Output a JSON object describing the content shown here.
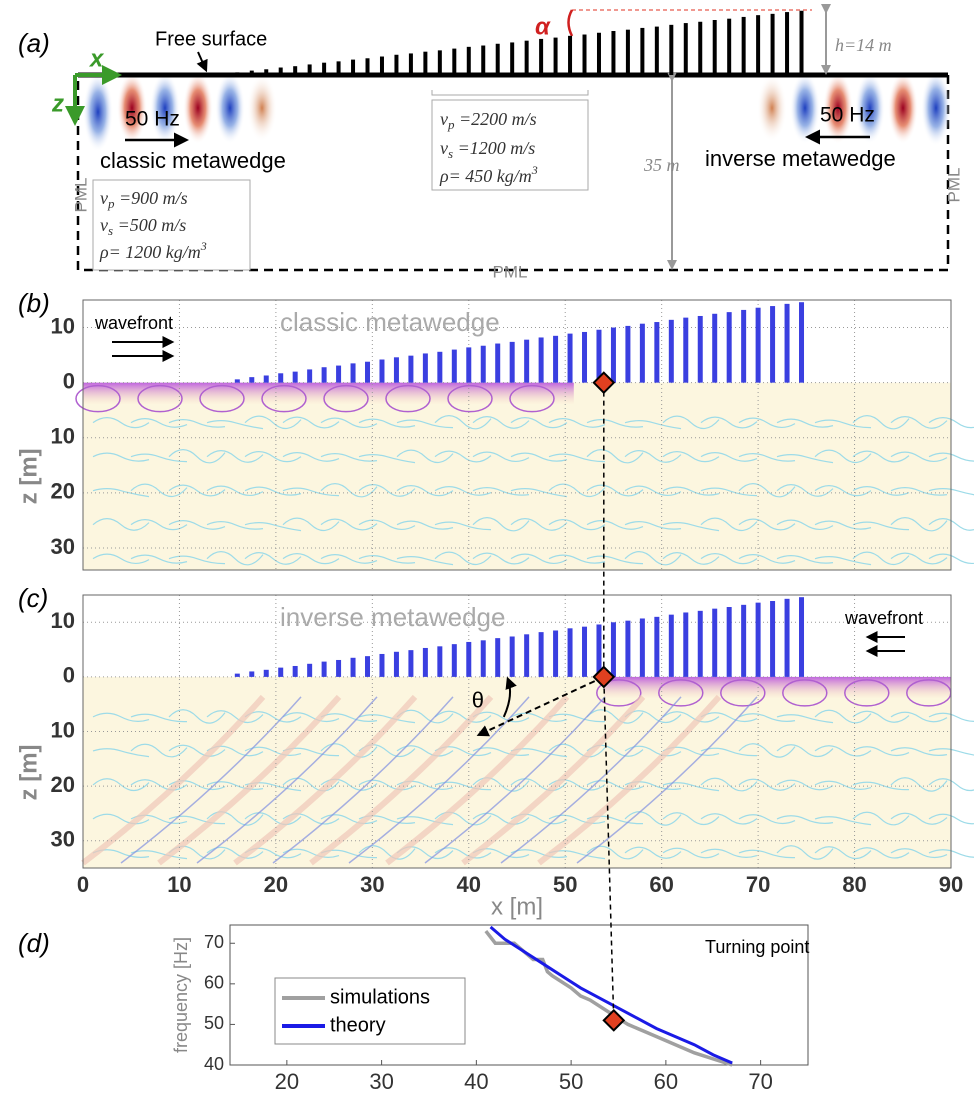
{
  "schematic": {
    "panel_label": "(a)",
    "free_surface": "Free surface",
    "x_axis": "x",
    "z_axis": "z",
    "left_source": {
      "frequency": "50 Hz",
      "name": "classic metawedge"
    },
    "right_source": {
      "frequency": "50 Hz",
      "name": "inverse metawedge"
    },
    "substrate": [
      [
        "v",
        "p",
        " =900 m/s"
      ],
      [
        "v",
        "s",
        " =500 m/s"
      ],
      [
        "ρ= 1200 kg/m",
        "3"
      ]
    ],
    "resonators": [
      [
        "v",
        "p",
        " =2200 m/s"
      ],
      [
        "v",
        "s",
        " =1200 m/s"
      ],
      [
        "ρ= 450 kg/m",
        "3"
      ]
    ],
    "angle": "α",
    "height": "h=14 m",
    "depth": "35 m",
    "pml": [
      "PML",
      "PML",
      "PML"
    ]
  },
  "metawedge": {
    "x": [
      16,
      17.5,
      19,
      20.5,
      22,
      23.5,
      25,
      26.5,
      28,
      29.5,
      31,
      32.5,
      34,
      35.5,
      37,
      38.5,
      40,
      41.5,
      43,
      44.5,
      46,
      47.5,
      49,
      50.5,
      52,
      53.5,
      55,
      56.5,
      58,
      59.5,
      61,
      62.5,
      64,
      65.5,
      67,
      68.5,
      70,
      71.5,
      73,
      74.5
    ],
    "heights": [
      0.6,
      1.0,
      1.3,
      1.7,
      2.0,
      2.4,
      2.8,
      3.1,
      3.5,
      3.8,
      4.2,
      4.6,
      4.9,
      5.3,
      5.6,
      6.0,
      6.4,
      6.7,
      7.1,
      7.4,
      7.8,
      8.2,
      8.5,
      8.9,
      9.2,
      9.6,
      10.0,
      10.3,
      10.7,
      11.0,
      11.4,
      11.8,
      12.1,
      12.5,
      12.8,
      13.2,
      13.6,
      13.9,
      14.3,
      14.6
    ],
    "color": "#3a3fe0"
  },
  "chart_data": [
    {
      "type": "field",
      "panel_label": "(b)",
      "title": "classic metawedge",
      "annotation": "wavefront",
      "ylabel": "z [m]",
      "xlim": [
        0,
        90
      ],
      "ylim": [
        -15,
        34
      ],
      "xticks": [
        0,
        10,
        20,
        30,
        40,
        50,
        60,
        70,
        80,
        90
      ],
      "yticks": [
        {
          "value": -10,
          "label": "10"
        },
        0,
        10,
        20,
        30
      ],
      "grid": true,
      "show_xtick_labels": false,
      "turning_point_x": 54,
      "wave_direction": "right"
    },
    {
      "type": "field",
      "panel_label": "(c)",
      "title": "inverse metawedge",
      "annotation": "wavefront",
      "ylabel": "z [m]",
      "xlabel": "x [m]",
      "angle_label": "θ",
      "xlim": [
        0,
        90
      ],
      "ylim": [
        -15,
        35
      ],
      "xticks": [
        0,
        10,
        20,
        30,
        40,
        50,
        60,
        70,
        80,
        90
      ],
      "yticks": [
        {
          "value": -10,
          "label": "10"
        },
        0,
        10,
        20,
        30
      ],
      "grid": true,
      "show_xtick_labels": true,
      "turning_point_x": 54,
      "wave_direction": "left"
    },
    {
      "type": "line",
      "panel_label": "(d)",
      "ylabel": "frequency [Hz]",
      "annotation": "Turning point",
      "xlim": [
        14,
        75
      ],
      "ylim": [
        40,
        74.5
      ],
      "xticks": [
        20,
        30,
        40,
        50,
        60,
        70
      ],
      "yticks": [
        40,
        50,
        60,
        70
      ],
      "turning_point": {
        "x": 54.5,
        "frequency": 51
      },
      "series": [
        {
          "name": "simulations",
          "color": "#a0a0a0",
          "x": [
            41,
            42,
            44,
            45.5,
            46,
            47,
            47.5,
            48,
            50,
            51,
            52,
            54,
            56,
            58,
            60,
            63,
            67
          ],
          "values": [
            73,
            70,
            70,
            67,
            66,
            66,
            63,
            62,
            59,
            57,
            56,
            53,
            50,
            48,
            46,
            43,
            40
          ]
        },
        {
          "name": "theory",
          "color": "#1a1ae6",
          "x": [
            41.5,
            43,
            45,
            47,
            49,
            51,
            53,
            55,
            57,
            59,
            61,
            63,
            65,
            67
          ],
          "values": [
            74,
            71,
            68,
            65,
            62,
            59,
            56.5,
            54,
            51.5,
            49,
            47,
            45,
            42.5,
            40.5
          ]
        }
      ]
    }
  ]
}
